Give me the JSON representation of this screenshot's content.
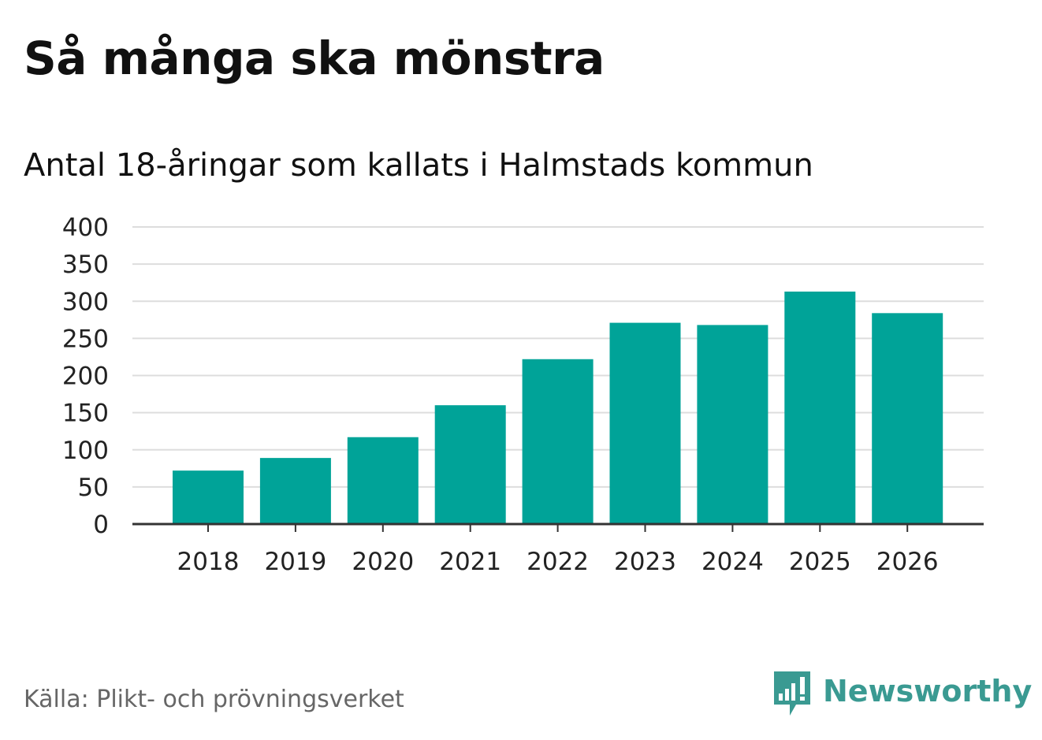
{
  "title": "Så många ska mönstra",
  "subtitle": "Antal 18-åringar som kallats i Halmstads kommun",
  "source": "Källa: Plikt- och prövningsverket",
  "brand": {
    "name": "Newsworthy",
    "icon": "newsworthy-logo-icon",
    "color": "#3a9a92"
  },
  "colors": {
    "bar": "#00a398",
    "grid": "#dddddd",
    "axis": "#333333"
  },
  "chart_data": {
    "type": "bar",
    "title": "Så många ska mönstra",
    "subtitle": "Antal 18-åringar som kallats i Halmstads kommun",
    "xlabel": "",
    "ylabel": "",
    "categories": [
      "2018",
      "2019",
      "2020",
      "2021",
      "2022",
      "2023",
      "2024",
      "2025",
      "2026"
    ],
    "values": [
      72,
      89,
      117,
      160,
      222,
      271,
      268,
      313,
      284
    ],
    "ylim": [
      0,
      400
    ],
    "yticks": [
      0,
      50,
      100,
      150,
      200,
      250,
      300,
      350,
      400
    ],
    "grid": true,
    "legend": "none"
  }
}
